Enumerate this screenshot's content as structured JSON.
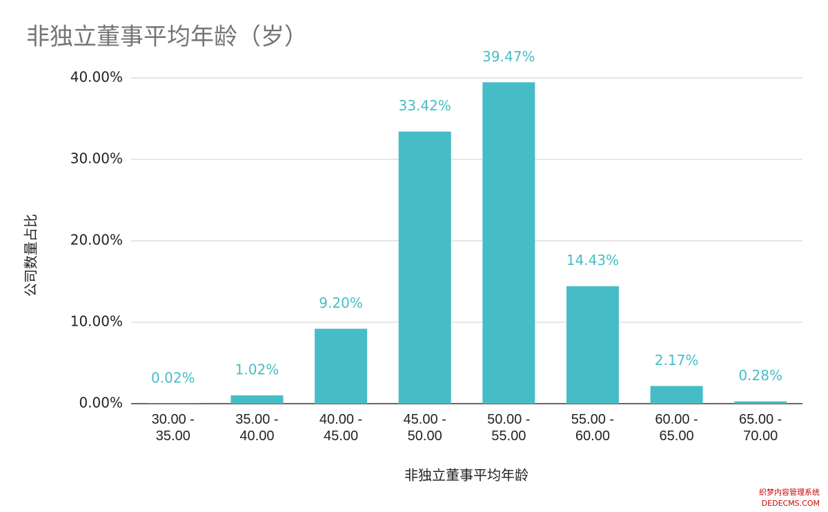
{
  "chart_data": {
    "type": "bar",
    "title": "非独立董事平均年龄（岁）",
    "x_label": "非独立董事平均年龄",
    "y_label": "公司数量占比",
    "categories": [
      "30.00 - 35.00",
      "35.00 - 40.00",
      "40.00 - 45.00",
      "45.00 - 50.00",
      "50.00 - 55.00",
      "55.00 - 60.00",
      "60.00 - 65.00",
      "65.00 - 70.00"
    ],
    "values": [
      0.02,
      1.02,
      9.2,
      33.42,
      39.47,
      14.43,
      2.17,
      0.28
    ],
    "value_labels": [
      "0.02%",
      "1.02%",
      "9.20%",
      "33.42%",
      "39.47%",
      "14.43%",
      "2.17%",
      "0.28%"
    ],
    "color": "#46bdc6",
    "ylim": [
      0,
      40
    ],
    "yticks": [
      {
        "value": 0,
        "label": "0.00%"
      },
      {
        "value": 10,
        "label": "10.00%"
      },
      {
        "value": 20,
        "label": "20.00%"
      },
      {
        "value": 30,
        "label": "30.00%"
      },
      {
        "value": 40,
        "label": "40.00%"
      }
    ],
    "grid": true
  },
  "watermark": [
    "织梦内容管理系统",
    "DEDECMS.COM"
  ]
}
